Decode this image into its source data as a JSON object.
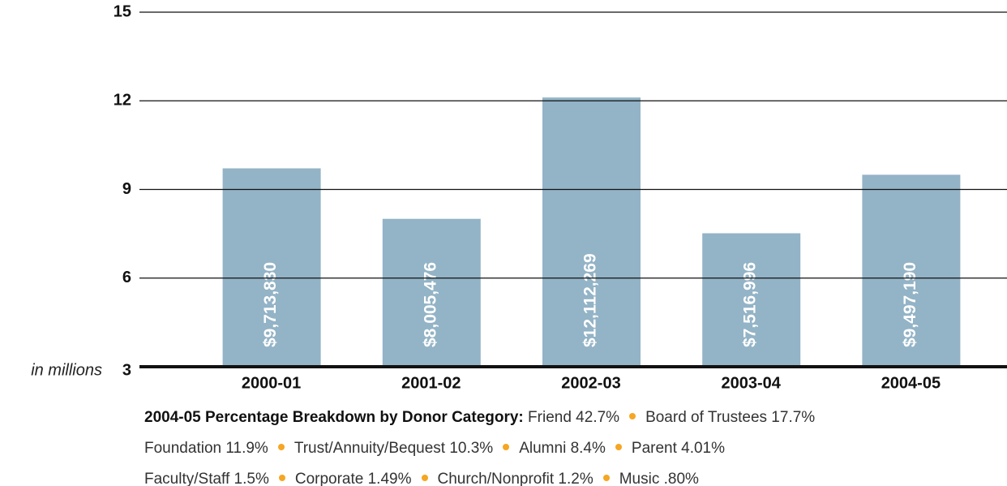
{
  "chart_data": {
    "type": "bar",
    "categories": [
      "2000-01",
      "2001-02",
      "2002-03",
      "2003-04",
      "2004-05"
    ],
    "values": [
      9.71383,
      8.005476,
      12.112269,
      7.516996,
      9.49719
    ],
    "value_labels": [
      "$9,713,830",
      "$8,005,476",
      "$12,112,269",
      "$7,516,996",
      "$9,497,190"
    ],
    "color": "#93b3c6",
    "ylim": [
      3,
      15
    ],
    "yticks": [
      3,
      6,
      9,
      12,
      15
    ],
    "ylabel": "in millions",
    "grid": true,
    "annotation": {
      "title": "2004-05 Percentage Breakdown by Donor Category:",
      "items": [
        "Friend 42.7%",
        "Board of Trustees 17.7%",
        "Foundation 11.9%",
        "Trust/Annuity/Bequest 10.3%",
        "Alumni 8.4%",
        "Parent 4.01%",
        "Faculty/Staff 1.5%",
        "Corporate 1.49%",
        "Church/Nonprofit 1.2%",
        "Music .80%"
      ]
    }
  }
}
